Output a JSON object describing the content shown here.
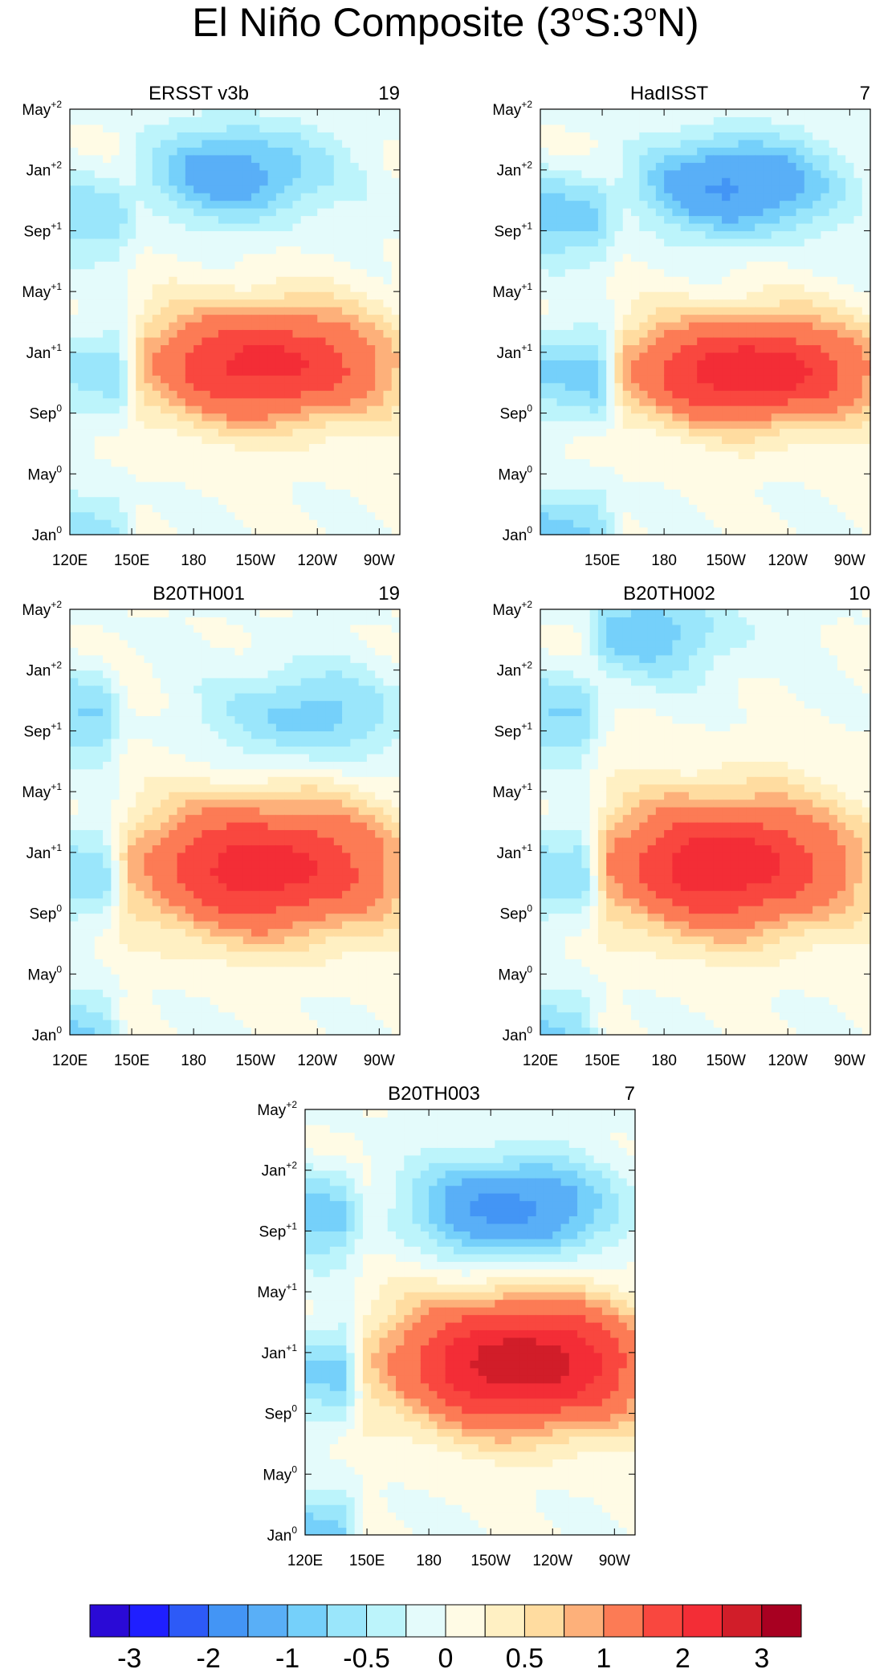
{
  "title": {
    "text": "El Niño Composite (3",
    "sup1": "o",
    "middle": "S:3",
    "sup2": "o",
    "end": "N)"
  },
  "chart_data": {
    "type": "heatmap",
    "shared": {
      "x_ticks": [
        "120E",
        "150E",
        "180",
        "150W",
        "120W",
        "90W"
      ],
      "x_tick_values": [
        120,
        150,
        180,
        210,
        240,
        270
      ],
      "x_range": [
        120,
        280
      ],
      "y_ticks": [
        {
          "base": "Jan",
          "sup": "0"
        },
        {
          "base": "May",
          "sup": "0"
        },
        {
          "base": "Sep",
          "sup": "0"
        },
        {
          "base": "Jan",
          "sup": "+1"
        },
        {
          "base": "May",
          "sup": "+1"
        },
        {
          "base": "Sep",
          "sup": "+1"
        },
        {
          "base": "Jan",
          "sup": "+2"
        },
        {
          "base": "May",
          "sup": "+2"
        }
      ],
      "y_tick_values": [
        0,
        4,
        8,
        12,
        16,
        20,
        24,
        28
      ],
      "y_range": [
        0,
        28
      ]
    },
    "panels": [
      {
        "title": "ERSST v3b",
        "count": "19",
        "hide_x_ticks": [],
        "west_edge": 155,
        "warm_peak": 2.2,
        "peak_lon": 215,
        "peak_time": 11.2,
        "lon_width": 62,
        "time_width": 3.8,
        "cool_peak": -1.25,
        "cool_lon": 200,
        "cool_time": 23.8,
        "edge_anomaly": -0.6
      },
      {
        "title": "HadISST",
        "count": "7",
        "hide_x_ticks": [
          "120E"
        ],
        "west_edge": 160,
        "warm_peak": 2.4,
        "peak_lon": 222,
        "peak_time": 10.8,
        "lon_width": 62,
        "time_width": 3.5,
        "cool_peak": -1.6,
        "cool_lon": 215,
        "cool_time": 23.0,
        "edge_anomaly": -0.8
      },
      {
        "title": "B20TH001",
        "count": "19",
        "hide_x_ticks": [],
        "west_edge": 148,
        "warm_peak": 2.3,
        "peak_lon": 215,
        "peak_time": 11.0,
        "lon_width": 65,
        "time_width": 4.4,
        "cool_peak": -0.9,
        "cool_lon": 235,
        "cool_time": 21.0,
        "edge_anomaly": -0.7
      },
      {
        "title": "B20TH002",
        "count": "10",
        "hide_x_ticks": [],
        "west_edge": 152,
        "warm_peak": 2.4,
        "peak_lon": 210,
        "peak_time": 11.2,
        "lon_width": 62,
        "time_width": 4.4,
        "cool_peak": -0.9,
        "cool_lon": 170,
        "cool_time": 26.5,
        "edge_anomaly": -0.7
      },
      {
        "title": "B20TH003",
        "count": "7",
        "hide_x_ticks": [],
        "west_edge": 150,
        "warm_peak": 2.9,
        "peak_lon": 225,
        "peak_time": 11.3,
        "lon_width": 62,
        "time_width": 4.2,
        "cool_peak": -1.7,
        "cool_lon": 220,
        "cool_time": 21.5,
        "edge_anomaly": -0.8
      }
    ],
    "colorbar": {
      "levels": [
        -3,
        -2.5,
        -2,
        -1.5,
        -1,
        -0.75,
        -0.5,
        -0.25,
        0,
        0.25,
        0.5,
        0.75,
        1,
        1.5,
        2,
        2.5,
        3
      ],
      "labels": [
        "-3",
        "-2",
        "-1",
        "-0.5",
        "0",
        "0.5",
        "1",
        "2",
        "3"
      ],
      "label_values": [
        -3,
        -2,
        -1,
        -0.5,
        0,
        0.5,
        1,
        2,
        3
      ],
      "colors": [
        "#2a0ad6",
        "#1f1fff",
        "#2d5af7",
        "#4395f5",
        "#59aff7",
        "#75d0fa",
        "#9ae6fb",
        "#bcf4fb",
        "#e4fbfb",
        "#fffbe5",
        "#fff0c3",
        "#ffdca0",
        "#fdb07a",
        "#fc7b55",
        "#f9473f",
        "#f32d36",
        "#d11d29",
        "#a80021"
      ]
    }
  }
}
